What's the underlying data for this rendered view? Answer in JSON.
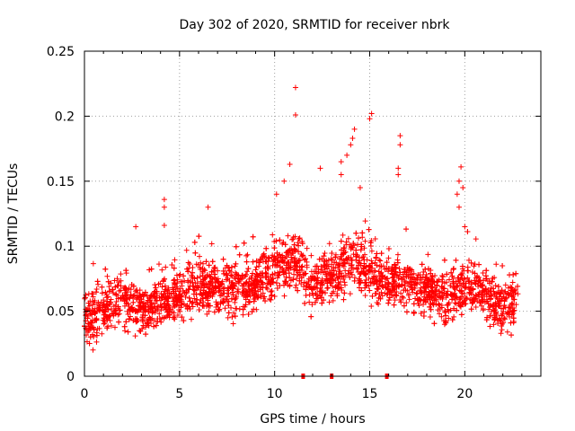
{
  "chart_data": {
    "type": "scatter",
    "title": "Day 302 of 2020, SRMTID for receiver nbrk",
    "xlabel": "GPS time / hours",
    "ylabel": "SRMTID / TECUs",
    "xlim": [
      0,
      24
    ],
    "ylim": [
      0,
      0.25
    ],
    "xticks": [
      0,
      5,
      10,
      15,
      20
    ],
    "xtick_labels": [
      "0",
      "5",
      "10",
      "15",
      "20"
    ],
    "yticks": [
      0,
      0.05,
      0.1,
      0.15,
      0.2,
      0.25
    ],
    "ytick_labels": [
      "0",
      "0.05",
      "0.1",
      "0.15",
      "0.2",
      "0.25"
    ],
    "grid": true,
    "marker": "+",
    "color": "#ff0000",
    "point_count": 3200,
    "x_range": [
      0,
      22.8
    ],
    "baseline_envelope": [
      [
        0,
        0.045
      ],
      [
        1,
        0.05
      ],
      [
        2,
        0.058
      ],
      [
        3,
        0.05
      ],
      [
        4,
        0.057
      ],
      [
        5,
        0.062
      ],
      [
        6,
        0.068
      ],
      [
        7,
        0.07
      ],
      [
        8,
        0.068
      ],
      [
        9,
        0.072
      ],
      [
        10,
        0.085
      ],
      [
        11,
        0.09
      ],
      [
        12,
        0.07
      ],
      [
        13,
        0.075
      ],
      [
        14,
        0.09
      ],
      [
        15,
        0.08
      ],
      [
        16,
        0.075
      ],
      [
        17,
        0.07
      ],
      [
        18,
        0.065
      ],
      [
        19,
        0.06
      ],
      [
        20,
        0.07
      ],
      [
        21,
        0.065
      ],
      [
        22,
        0.05
      ],
      [
        22.8,
        0.058
      ]
    ],
    "outliers": [
      {
        "x": 11.1,
        "y": 0.222
      },
      {
        "x": 11.1,
        "y": 0.201
      },
      {
        "x": 15.1,
        "y": 0.202
      },
      {
        "x": 15.0,
        "y": 0.198
      },
      {
        "x": 14.2,
        "y": 0.19
      },
      {
        "x": 14.1,
        "y": 0.183
      },
      {
        "x": 14.0,
        "y": 0.178
      },
      {
        "x": 13.8,
        "y": 0.17
      },
      {
        "x": 13.5,
        "y": 0.165
      },
      {
        "x": 12.4,
        "y": 0.16
      },
      {
        "x": 16.6,
        "y": 0.185
      },
      {
        "x": 16.6,
        "y": 0.178
      },
      {
        "x": 16.5,
        "y": 0.16
      },
      {
        "x": 16.5,
        "y": 0.155
      },
      {
        "x": 19.8,
        "y": 0.161
      },
      {
        "x": 19.7,
        "y": 0.15
      },
      {
        "x": 19.9,
        "y": 0.145
      },
      {
        "x": 19.6,
        "y": 0.14
      },
      {
        "x": 19.7,
        "y": 0.13
      },
      {
        "x": 20.0,
        "y": 0.115
      },
      {
        "x": 4.2,
        "y": 0.136
      },
      {
        "x": 4.2,
        "y": 0.13
      },
      {
        "x": 4.2,
        "y": 0.116
      },
      {
        "x": 10.8,
        "y": 0.163
      },
      {
        "x": 10.5,
        "y": 0.15
      },
      {
        "x": 10.1,
        "y": 0.14
      },
      {
        "x": 6.5,
        "y": 0.13
      },
      {
        "x": 2.7,
        "y": 0.115
      },
      {
        "x": 13.5,
        "y": 0.155
      },
      {
        "x": 14.5,
        "y": 0.145
      }
    ],
    "zero_markers": [
      11.5,
      13.0,
      15.9
    ]
  }
}
